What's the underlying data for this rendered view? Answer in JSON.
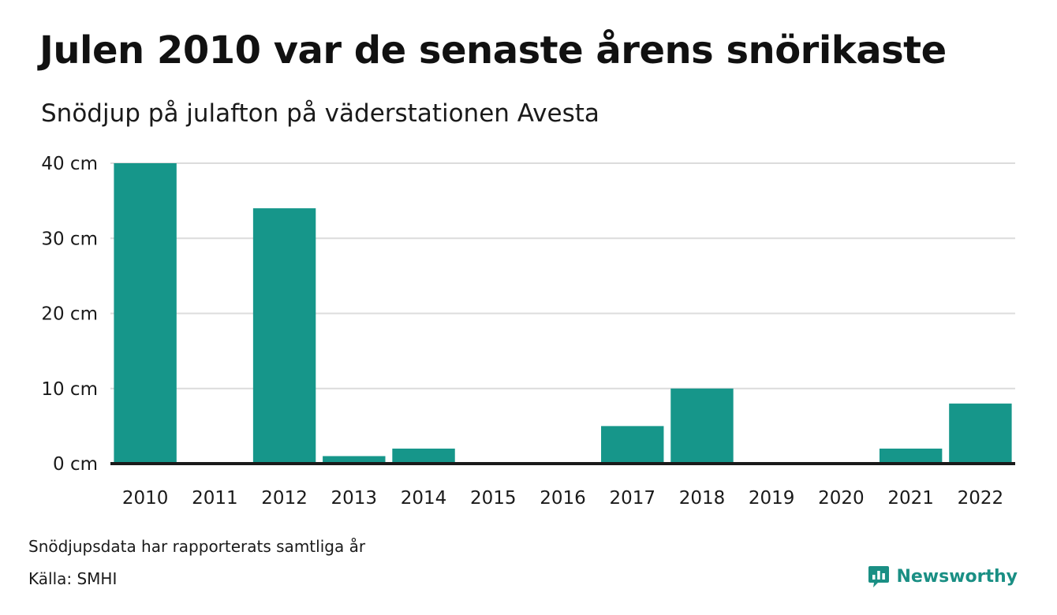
{
  "title": "Julen 2010 var de senaste årens snörikaste",
  "subtitle": "Snödjup på julafton på väderstationen Avesta",
  "footnote": "Snödjupsdata har rapporterats samtliga år",
  "source": "Källa: SMHI",
  "brand": {
    "name": "Newsworthy",
    "icon": "newsworthy-logo-icon",
    "color": "#1a8f84"
  },
  "chart_data": {
    "type": "bar",
    "categories": [
      "2010",
      "2011",
      "2012",
      "2013",
      "2014",
      "2015",
      "2016",
      "2017",
      "2018",
      "2019",
      "2020",
      "2021",
      "2022"
    ],
    "values": [
      40,
      0,
      34,
      1,
      2,
      0,
      0,
      5,
      10,
      0,
      0,
      2,
      8
    ],
    "ylim": [
      0,
      40
    ],
    "yticks": [
      0,
      10,
      20,
      30,
      40
    ],
    "ytick_labels": [
      "0 cm",
      "10 cm",
      "20 cm",
      "30 cm",
      "40 cm"
    ],
    "bar_color": "#16968a",
    "grid": true,
    "xlabel": "",
    "ylabel": ""
  }
}
